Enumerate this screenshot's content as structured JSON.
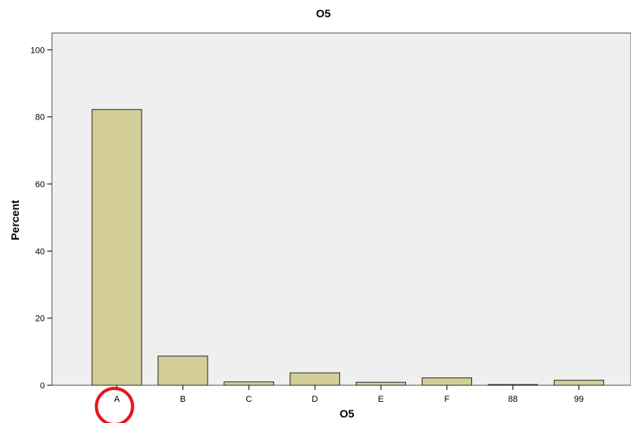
{
  "chart_data": {
    "type": "bar",
    "title": "O5",
    "xlabel": "O5",
    "ylabel": "Percent",
    "categories": [
      "A",
      "B",
      "C",
      "D",
      "E",
      "F",
      "88",
      "99"
    ],
    "values": [
      82.2,
      8.7,
      1.0,
      3.7,
      0.9,
      2.2,
      0.2,
      1.5
    ],
    "ylim": [
      0,
      105
    ],
    "yticks": [
      "0",
      "20",
      "40",
      "60",
      "80",
      "100"
    ],
    "grid": false,
    "colors": {
      "bar_fill": "#d3ce97",
      "bar_stroke": "#2b2b2b",
      "plot_bg": "#efefef",
      "annotation": "#e8141b"
    },
    "annotations": [
      {
        "kind": "circle",
        "target_category": "A"
      }
    ]
  }
}
